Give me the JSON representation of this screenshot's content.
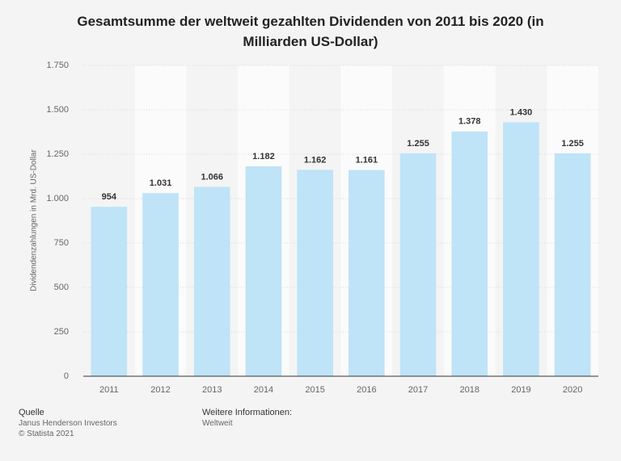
{
  "chart_data": {
    "type": "bar",
    "title": "Gesamtsumme der weltweit gezahlten Dividenden von 2011 bis 2020 (in Milliarden US-Dollar)",
    "y_label": "Dividendenzahlungen in Mrd. US-Dollar",
    "categories": [
      "2011",
      "2012",
      "2013",
      "2014",
      "2015",
      "2016",
      "2017",
      "2018",
      "2019",
      "2020"
    ],
    "values": [
      954,
      1031,
      1066,
      1182,
      1162,
      1161,
      1255,
      1378,
      1430,
      1255
    ],
    "value_labels": [
      "954",
      "1.031",
      "1.066",
      "1.182",
      "1.162",
      "1.161",
      "1.255",
      "1.378",
      "1.430",
      "1.255"
    ],
    "color": "#bfe3f7",
    "ylim": [
      0,
      1750
    ],
    "yticks": [
      0,
      250,
      500,
      750,
      {
        "value": 1000,
        "label": "1.000"
      },
      {
        "value": 1250,
        "label": "1.250"
      },
      {
        "value": 1500,
        "label": "1.500"
      },
      {
        "value": 1750,
        "label": "1.750"
      }
    ],
    "grid": true
  },
  "footer": {
    "source_heading": "Quelle",
    "source": "Janus Henderson Investors",
    "copyright": "© Statista 2021",
    "info_heading": "Weitere Informationen:",
    "info": "Weltweit"
  }
}
